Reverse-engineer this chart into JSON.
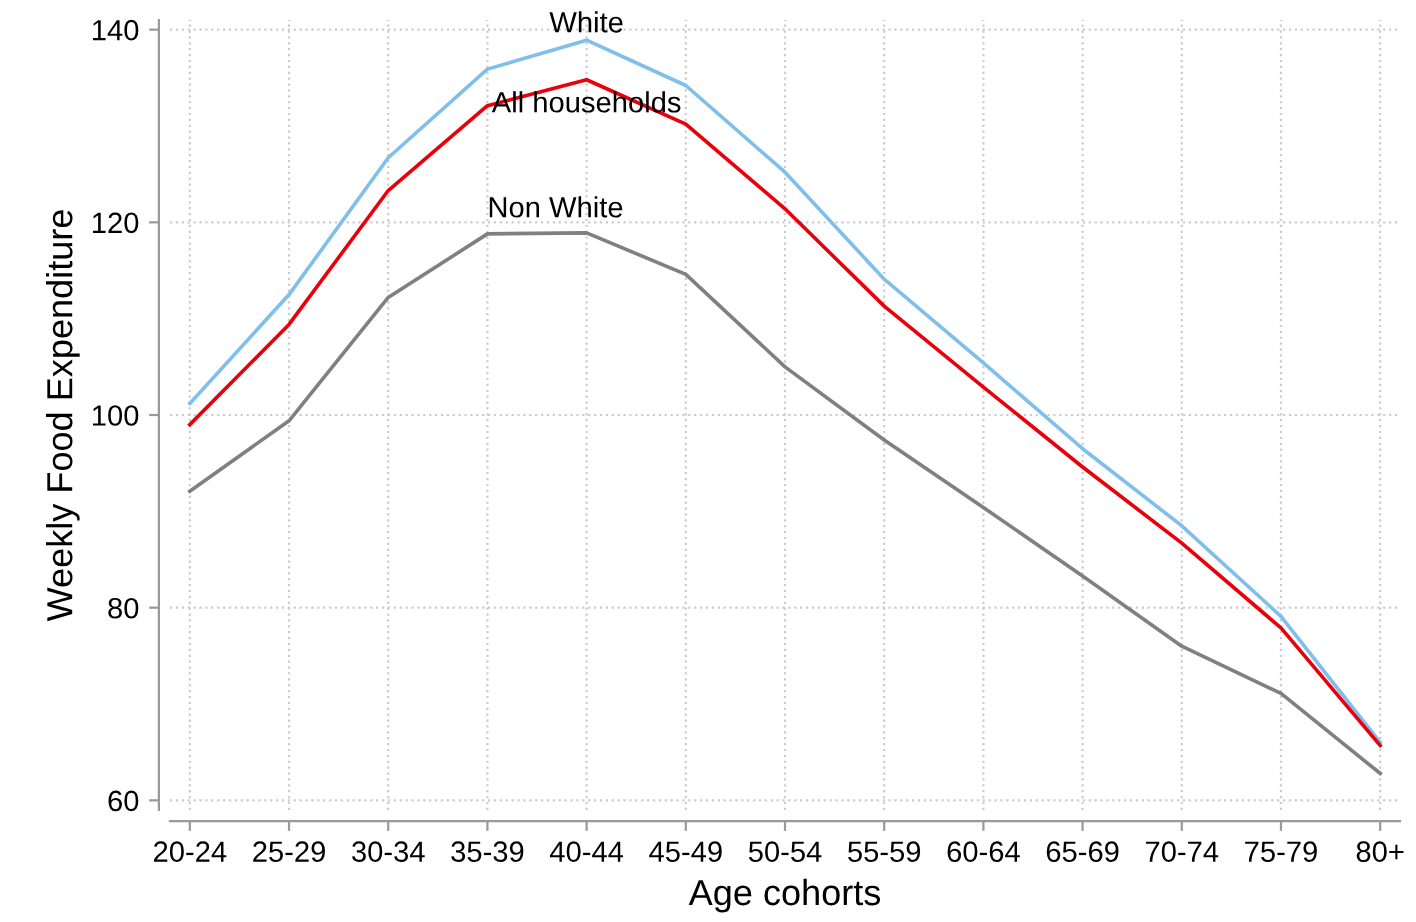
{
  "chart_data": {
    "type": "line",
    "xlabel": "Age cohorts",
    "ylabel": "Weekly Food Expenditure",
    "categories": [
      "20-24",
      "25-29",
      "30-34",
      "35-39",
      "40-44",
      "45-49",
      "50-54",
      "55-59",
      "60-64",
      "65-69",
      "70-74",
      "75-79",
      "80+"
    ],
    "series": [
      {
        "name": "White",
        "color": "#7fbfea",
        "values": [
          101.2,
          112.5,
          126.7,
          135.9,
          138.9,
          134.2,
          125.2,
          114.1,
          105.4,
          96.5,
          88.5,
          79.1,
          66.0
        ]
      },
      {
        "name": "All households",
        "color": "#e8000b",
        "values": [
          99.0,
          109.4,
          123.3,
          132.1,
          134.8,
          130.2,
          121.4,
          111.3,
          102.9,
          94.6,
          86.7,
          77.9,
          65.7
        ]
      },
      {
        "name": "Non White",
        "color": "#808080",
        "values": [
          92.1,
          99.4,
          112.2,
          118.8,
          118.9,
          114.6,
          105.0,
          97.4,
          90.4,
          83.3,
          76.0,
          71.1,
          62.8
        ]
      }
    ],
    "ylim": [
      59,
      141
    ],
    "yticks": [
      60,
      80,
      100,
      120,
      140
    ],
    "grid": true,
    "legend": false
  }
}
